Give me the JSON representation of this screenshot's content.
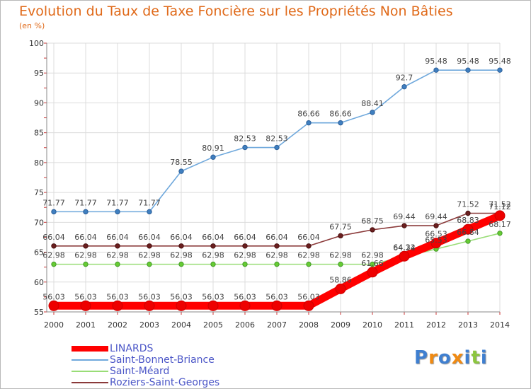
{
  "header": {
    "title": "Evolution du Taux de Taxe Foncière sur les Propriétés Non Bâties",
    "subtitle": "(en %)"
  },
  "logo": {
    "letters": [
      "P",
      "r",
      "o",
      "x",
      "i",
      "t",
      "i"
    ],
    "colors": [
      "#3f7fd0",
      "#f08a12",
      "#3f7fd0",
      "#f08a12",
      "#3f7fd0",
      "#8cc63f",
      "#3f7fd0"
    ]
  },
  "chart_data": {
    "type": "line",
    "title": "Evolution du Taux de Taxe Foncière sur les Propriétés Non Bâties",
    "ylabel": "(en %)",
    "xlabel": "",
    "x": [
      2000,
      2001,
      2002,
      2003,
      2004,
      2005,
      2006,
      2007,
      2008,
      2009,
      2010,
      2011,
      2012,
      2013,
      2014
    ],
    "ylim": [
      55,
      100
    ],
    "yticks": [
      55,
      60,
      65,
      70,
      75,
      80,
      85,
      90,
      95,
      100
    ],
    "grid": true,
    "legend_position": "bottom-left",
    "series": [
      {
        "name": "LINARDS",
        "color": "#ff0000",
        "values": [
          56.03,
          56.03,
          56.03,
          56.03,
          56.03,
          56.03,
          56.03,
          56.03,
          56.03,
          58.86,
          61.66,
          64.32,
          66.53,
          68.83,
          71.12
        ],
        "labels": [
          "56.03",
          "56.03",
          "56.03",
          "56.03",
          "56.03",
          "56.03",
          "56.03",
          "56.03",
          "56.03",
          "58.86",
          "61.66",
          "64.32",
          "66.53",
          "68.83",
          "71.12"
        ]
      },
      {
        "name": "Saint-Bonnet-Briance",
        "color": "#6fa8dc",
        "values": [
          71.77,
          71.77,
          71.77,
          71.77,
          78.55,
          80.91,
          82.53,
          82.53,
          86.66,
          86.66,
          88.41,
          92.7,
          95.48,
          95.48,
          95.48
        ],
        "labels": [
          "71.77",
          "71.77",
          "71.77",
          "71.77",
          "78.55",
          "80.91",
          "82.53",
          "82.53",
          "86.66",
          "86.66",
          "88.41",
          "92.7",
          "95.48",
          "95.48",
          "95.48"
        ]
      },
      {
        "name": "Saint-Méard",
        "color": "#99dd77",
        "values": [
          62.98,
          62.98,
          62.98,
          62.98,
          62.98,
          62.98,
          62.98,
          62.98,
          62.98,
          62.98,
          62.98,
          64.24,
          65.53,
          66.84,
          68.17
        ],
        "labels": [
          "62.98",
          "62.98",
          "62.98",
          "62.98",
          "62.98",
          "62.98",
          "62.98",
          "62.98",
          "62.98",
          "62.98",
          "62.98",
          "64.24",
          "65.53",
          "66.84",
          "68.17"
        ]
      },
      {
        "name": "Roziers-Saint-Georges",
        "color": "#8b3a3a",
        "values": [
          66.04,
          66.04,
          66.04,
          66.04,
          66.04,
          66.04,
          66.04,
          66.04,
          66.04,
          67.75,
          68.75,
          69.44,
          69.44,
          71.52,
          71.52
        ],
        "labels": [
          "66.04",
          "66.04",
          "66.04",
          "66.04",
          "66.04",
          "66.04",
          "66.04",
          "66.04",
          "66.04",
          "67.75",
          "68.75",
          "69.44",
          "69.44",
          "71.52",
          "71.52"
        ]
      }
    ]
  }
}
